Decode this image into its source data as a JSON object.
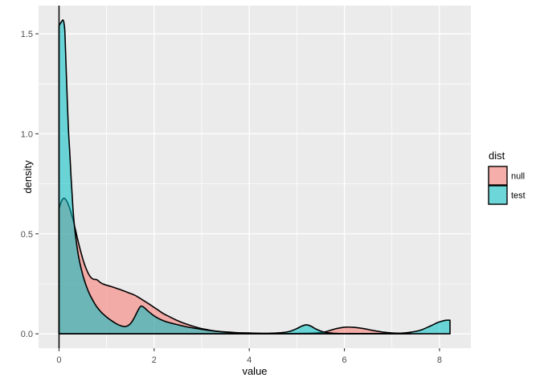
{
  "chart_data": {
    "type": "area",
    "title": "",
    "xlabel": "value",
    "ylabel": "density",
    "x_tick_values": [
      0,
      2,
      4,
      6,
      8
    ],
    "x_tick_labels": [
      "0",
      "2",
      "4",
      "6",
      "8"
    ],
    "x_minor_values": [
      1,
      3,
      5,
      7
    ],
    "y_tick_values": [
      0.0,
      0.5,
      1.0,
      1.5
    ],
    "y_tick_labels": [
      "0.0",
      "0.5",
      "1.0",
      "1.5"
    ],
    "y_minor_values": [
      0.25,
      0.75,
      1.25
    ],
    "x_range_expanded": [
      -0.43,
      8.66
    ],
    "y_range_expanded": [
      -0.072,
      1.641
    ],
    "grid": true,
    "vline_x": 0,
    "fill_alpha": 0.55,
    "colors": {
      "panel_background": "#EBEBEB",
      "gridline": "#FFFFFF",
      "tick_text": "#4D4D4D",
      "tick_mark": "#333333",
      "outline": "#000000",
      "null_fill": "#F8766D",
      "test_fill": "#00BFC4",
      "legend_key_background": "#F2F2F2"
    },
    "legend": {
      "title": "dist",
      "position": "right",
      "entries": [
        {
          "label": "null",
          "fill": "#F8766D"
        },
        {
          "label": "test",
          "fill": "#00BFC4"
        }
      ]
    },
    "series": [
      {
        "name": "null",
        "fill": "#F8766D",
        "points": [
          [
            0,
            0.625
          ],
          [
            0.05,
            0.662
          ],
          [
            0.1,
            0.678
          ],
          [
            0.14,
            0.672
          ],
          [
            0.18,
            0.655
          ],
          [
            0.22,
            0.63
          ],
          [
            0.26,
            0.6
          ],
          [
            0.3,
            0.565
          ],
          [
            0.34,
            0.525
          ],
          [
            0.38,
            0.485
          ],
          [
            0.42,
            0.445
          ],
          [
            0.46,
            0.408
          ],
          [
            0.5,
            0.375
          ],
          [
            0.54,
            0.345
          ],
          [
            0.58,
            0.32
          ],
          [
            0.62,
            0.3
          ],
          [
            0.66,
            0.285
          ],
          [
            0.7,
            0.276
          ],
          [
            0.74,
            0.272
          ],
          [
            0.78,
            0.272
          ],
          [
            0.82,
            0.266
          ],
          [
            0.86,
            0.258
          ],
          [
            0.9,
            0.252
          ],
          [
            0.95,
            0.247
          ],
          [
            1.0,
            0.243
          ],
          [
            1.1,
            0.236
          ],
          [
            1.2,
            0.228
          ],
          [
            1.3,
            0.22
          ],
          [
            1.4,
            0.211
          ],
          [
            1.5,
            0.202
          ],
          [
            1.6,
            0.192
          ],
          [
            1.7,
            0.178
          ],
          [
            1.8,
            0.163
          ],
          [
            1.9,
            0.148
          ],
          [
            2.0,
            0.132
          ],
          [
            2.1,
            0.116
          ],
          [
            2.2,
            0.1
          ],
          [
            2.3,
            0.088
          ],
          [
            2.4,
            0.076
          ],
          [
            2.5,
            0.065
          ],
          [
            2.6,
            0.055
          ],
          [
            2.7,
            0.047
          ],
          [
            2.8,
            0.039
          ],
          [
            2.9,
            0.032
          ],
          [
            3.0,
            0.026
          ],
          [
            3.2,
            0.017
          ],
          [
            3.4,
            0.011
          ],
          [
            3.6,
            0.008
          ],
          [
            3.8,
            0.005
          ],
          [
            4.0,
            0.004
          ],
          [
            4.2,
            0.002
          ],
          [
            4.5,
            0.002
          ],
          [
            4.8,
            0.001
          ],
          [
            5.1,
            0.002
          ],
          [
            5.4,
            0.004
          ],
          [
            5.6,
            0.01
          ],
          [
            5.8,
            0.024
          ],
          [
            6.0,
            0.033
          ],
          [
            6.2,
            0.032
          ],
          [
            6.4,
            0.026
          ],
          [
            6.6,
            0.017
          ],
          [
            6.8,
            0.009
          ],
          [
            7.0,
            0.004
          ],
          [
            7.2,
            0.002
          ],
          [
            7.4,
            0.001
          ]
        ]
      },
      {
        "name": "test",
        "fill": "#00BFC4",
        "points": [
          [
            0,
            1.54
          ],
          [
            0.05,
            1.56
          ],
          [
            0.09,
            1.567
          ],
          [
            0.12,
            1.52
          ],
          [
            0.14,
            1.4
          ],
          [
            0.16,
            1.26
          ],
          [
            0.18,
            1.13
          ],
          [
            0.2,
            1.01
          ],
          [
            0.22,
            0.93
          ],
          [
            0.25,
            0.8
          ],
          [
            0.27,
            0.72
          ],
          [
            0.29,
            0.64
          ],
          [
            0.31,
            0.575
          ],
          [
            0.34,
            0.505
          ],
          [
            0.37,
            0.45
          ],
          [
            0.4,
            0.402
          ],
          [
            0.44,
            0.352
          ],
          [
            0.48,
            0.312
          ],
          [
            0.52,
            0.278
          ],
          [
            0.56,
            0.248
          ],
          [
            0.6,
            0.222
          ],
          [
            0.65,
            0.195
          ],
          [
            0.7,
            0.172
          ],
          [
            0.75,
            0.151
          ],
          [
            0.8,
            0.133
          ],
          [
            0.85,
            0.118
          ],
          [
            0.9,
            0.105
          ],
          [
            0.95,
            0.094
          ],
          [
            1.0,
            0.084
          ],
          [
            1.1,
            0.066
          ],
          [
            1.2,
            0.051
          ],
          [
            1.3,
            0.04
          ],
          [
            1.38,
            0.036
          ],
          [
            1.45,
            0.041
          ],
          [
            1.52,
            0.056
          ],
          [
            1.6,
            0.088
          ],
          [
            1.66,
            0.117
          ],
          [
            1.72,
            0.138
          ],
          [
            1.78,
            0.133
          ],
          [
            1.85,
            0.118
          ],
          [
            1.95,
            0.098
          ],
          [
            2.05,
            0.082
          ],
          [
            2.15,
            0.07
          ],
          [
            2.3,
            0.057
          ],
          [
            2.5,
            0.045
          ],
          [
            2.7,
            0.034
          ],
          [
            2.9,
            0.026
          ],
          [
            3.1,
            0.019
          ],
          [
            3.3,
            0.013
          ],
          [
            3.5,
            0.008
          ],
          [
            3.7,
            0.005
          ],
          [
            3.9,
            0.003
          ],
          [
            4.1,
            0.002
          ],
          [
            4.3,
            0.002
          ],
          [
            4.5,
            0.003
          ],
          [
            4.7,
            0.006
          ],
          [
            4.85,
            0.012
          ],
          [
            5.0,
            0.026
          ],
          [
            5.1,
            0.038
          ],
          [
            5.2,
            0.045
          ],
          [
            5.3,
            0.038
          ],
          [
            5.4,
            0.024
          ],
          [
            5.55,
            0.01
          ],
          [
            5.7,
            0.004
          ],
          [
            5.9,
            0.001
          ],
          [
            6.2,
            0.001
          ],
          [
            6.6,
            0.001
          ],
          [
            7.0,
            0.001
          ],
          [
            7.2,
            0.003
          ],
          [
            7.4,
            0.008
          ],
          [
            7.6,
            0.018
          ],
          [
            7.8,
            0.038
          ],
          [
            7.95,
            0.055
          ],
          [
            8.05,
            0.063
          ],
          [
            8.15,
            0.068
          ],
          [
            8.22,
            0.068
          ]
        ]
      }
    ]
  }
}
